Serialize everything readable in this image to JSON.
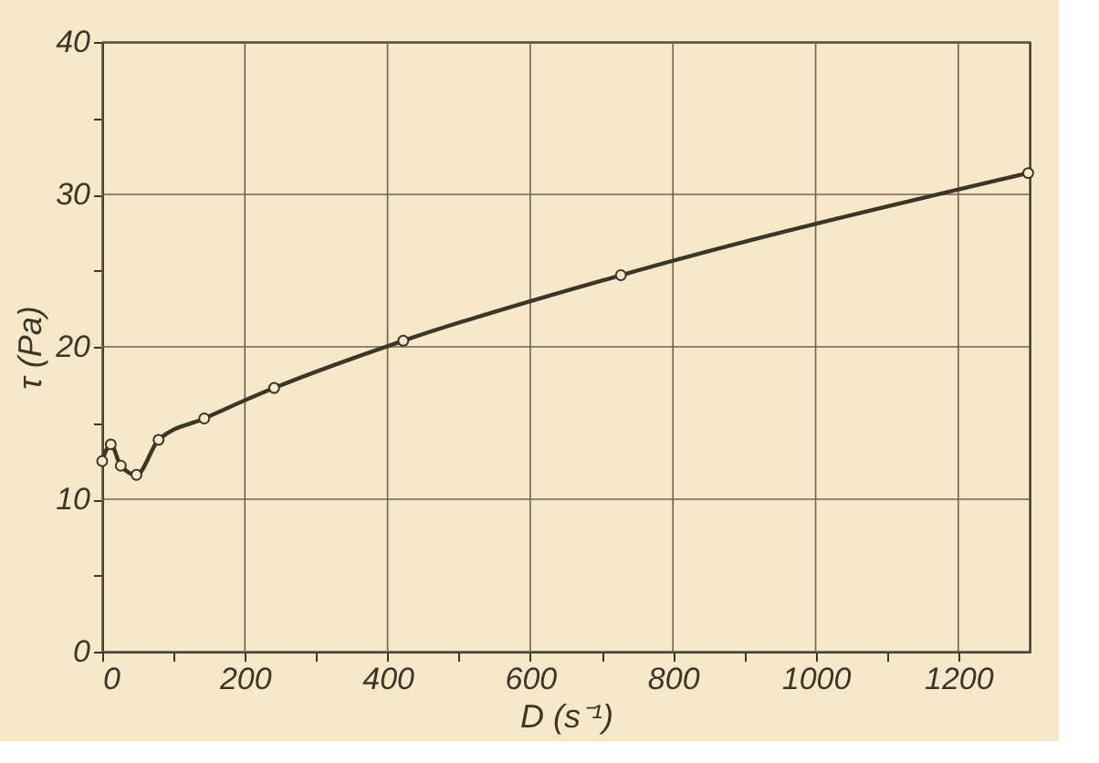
{
  "chart_data": {
    "type": "line",
    "xlabel": "D (s⁻¹)",
    "ylabel": "τ (Pa)",
    "x": [
      0,
      12,
      26,
      48,
      79,
      143,
      241,
      422,
      727,
      1298
    ],
    "series": [
      {
        "color": "#3a3628",
        "values": [
          12.5,
          13.6,
          12.2,
          11.6,
          13.9,
          15.3,
          17.3,
          20.4,
          24.7,
          31.4
        ]
      }
    ],
    "xlim": [
      0,
      1300
    ],
    "ylim": [
      0,
      40
    ],
    "xticks": [
      0,
      {
        "value": 100,
        "label": null
      },
      200,
      {
        "value": 300,
        "label": null
      },
      400,
      {
        "value": 500,
        "label": null
      },
      600,
      {
        "value": 700,
        "label": null
      },
      800,
      {
        "value": 900,
        "label": null
      },
      1000,
      {
        "value": 1100,
        "label": null
      },
      1200
    ],
    "yticks": [
      0,
      {
        "value": 5,
        "label": null
      },
      10,
      {
        "value": 15,
        "label": null
      },
      20,
      {
        "value": 25,
        "label": null
      },
      30,
      {
        "value": 35,
        "label": null
      },
      40
    ],
    "grid": true,
    "marker": "circle",
    "line_style": "solid"
  }
}
